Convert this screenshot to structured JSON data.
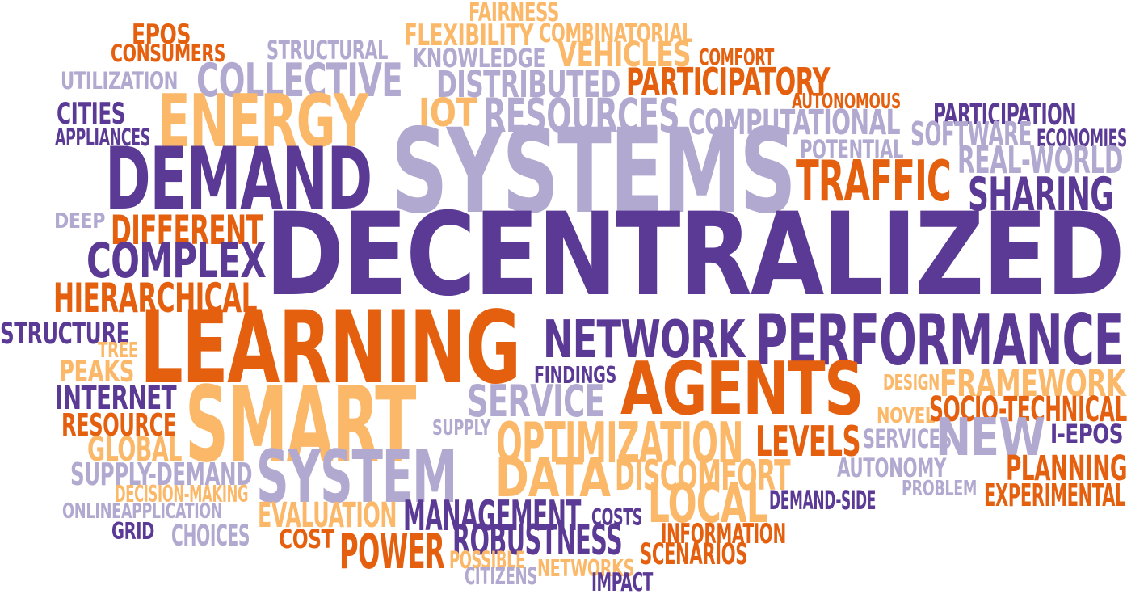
{
  "palette": {
    "dark_purple": "#5b3a96",
    "light_purple": "#b1a9cf",
    "dark_orange": "#e4600f",
    "light_orange": "#fbb868"
  },
  "words": [
    {
      "text": "FAIRNESS",
      "color": "light_orange"
    },
    {
      "text": "EPOS",
      "color": "dark_orange"
    },
    {
      "text": "CONSUMERS",
      "color": "dark_orange"
    },
    {
      "text": "STRUCTURAL",
      "color": "light_purple"
    },
    {
      "text": "FLEXIBILITY",
      "color": "light_orange"
    },
    {
      "text": "COMBINATORIAL",
      "color": "light_orange"
    },
    {
      "text": "KNOWLEDGE",
      "color": "light_purple"
    },
    {
      "text": "VEHICLES",
      "color": "light_orange"
    },
    {
      "text": "COMFORT",
      "color": "dark_orange"
    },
    {
      "text": "UTILIZATION",
      "color": "light_purple"
    },
    {
      "text": "COLLECTIVE",
      "color": "light_purple"
    },
    {
      "text": "DISTRIBUTED",
      "color": "light_purple"
    },
    {
      "text": "PARTICIPATORY",
      "color": "dark_orange"
    },
    {
      "text": "AUTONOMOUS",
      "color": "dark_orange"
    },
    {
      "text": "CITIES",
      "color": "dark_purple"
    },
    {
      "text": "ENERGY",
      "color": "light_orange"
    },
    {
      "text": "IOT",
      "color": "light_orange"
    },
    {
      "text": "RESOURCES",
      "color": "light_purple"
    },
    {
      "text": "COMPUTATIONAL",
      "color": "light_purple"
    },
    {
      "text": "PARTICIPATION",
      "color": "dark_purple"
    },
    {
      "text": "APPLIANCES",
      "color": "dark_purple"
    },
    {
      "text": "SOFTWARE",
      "color": "light_purple"
    },
    {
      "text": "ECONOMIES",
      "color": "dark_purple"
    },
    {
      "text": "POTENTIAL",
      "color": "light_purple"
    },
    {
      "text": "DEMAND",
      "color": "dark_purple"
    },
    {
      "text": "SYSTEMS",
      "color": "light_purple"
    },
    {
      "text": "REAL-WORLD",
      "color": "light_purple"
    },
    {
      "text": "TRAFFIC",
      "color": "dark_orange"
    },
    {
      "text": "SHARING",
      "color": "dark_purple"
    },
    {
      "text": "DEEP",
      "color": "light_purple"
    },
    {
      "text": "DIFFERENT",
      "color": "dark_orange"
    },
    {
      "text": "COMPLEX",
      "color": "dark_purple"
    },
    {
      "text": "DECENTRALIZED",
      "color": "dark_purple"
    },
    {
      "text": "HIERARCHICAL",
      "color": "dark_orange"
    },
    {
      "text": "STRUCTURE",
      "color": "dark_purple"
    },
    {
      "text": "LEARNING",
      "color": "dark_orange"
    },
    {
      "text": "NETWORK",
      "color": "dark_purple"
    },
    {
      "text": "PERFORMANCE",
      "color": "dark_purple"
    },
    {
      "text": "TREE",
      "color": "light_orange"
    },
    {
      "text": "PEAKS",
      "color": "light_orange"
    },
    {
      "text": "FINDINGS",
      "color": "dark_purple"
    },
    {
      "text": "AGENTS",
      "color": "dark_orange"
    },
    {
      "text": "DESIGN",
      "color": "light_orange"
    },
    {
      "text": "FRAMEWORK",
      "color": "light_orange"
    },
    {
      "text": "INTERNET",
      "color": "dark_purple"
    },
    {
      "text": "SMART",
      "color": "light_orange"
    },
    {
      "text": "SERVICE",
      "color": "light_purple"
    },
    {
      "text": "NOVEL",
      "color": "light_orange"
    },
    {
      "text": "SOCIO-TECHNICAL",
      "color": "dark_orange"
    },
    {
      "text": "RESOURCE",
      "color": "dark_orange"
    },
    {
      "text": "SUPPLY",
      "color": "light_purple"
    },
    {
      "text": "NEW",
      "color": "light_purple"
    },
    {
      "text": "I-EPOS",
      "color": "dark_purple"
    },
    {
      "text": "GLOBAL",
      "color": "light_orange"
    },
    {
      "text": "OPTIMIZATION",
      "color": "light_orange"
    },
    {
      "text": "LEVELS",
      "color": "dark_orange"
    },
    {
      "text": "SERVICES",
      "color": "light_purple"
    },
    {
      "text": "SUPPLY-DEMAND",
      "color": "light_purple"
    },
    {
      "text": "SYSTEM",
      "color": "light_purple"
    },
    {
      "text": "DATA",
      "color": "light_orange"
    },
    {
      "text": "DISCOMFORT",
      "color": "light_orange"
    },
    {
      "text": "AUTONOMY",
      "color": "light_purple"
    },
    {
      "text": "PLANNING",
      "color": "dark_orange"
    },
    {
      "text": "DECISION-MAKING",
      "color": "light_orange"
    },
    {
      "text": "PROBLEM",
      "color": "light_purple"
    },
    {
      "text": "EXPERIMENTAL",
      "color": "dark_orange"
    },
    {
      "text": "ONLINE",
      "color": "light_purple"
    },
    {
      "text": "APPLICATION",
      "color": "light_purple"
    },
    {
      "text": "LOCAL",
      "color": "light_orange"
    },
    {
      "text": "DEMAND-SIDE",
      "color": "dark_purple"
    },
    {
      "text": "EVALUATION",
      "color": "light_orange"
    },
    {
      "text": "MANAGEMENT",
      "color": "dark_purple"
    },
    {
      "text": "COSTS",
      "color": "dark_purple"
    },
    {
      "text": "GRID",
      "color": "dark_purple"
    },
    {
      "text": "CHOICES",
      "color": "light_purple"
    },
    {
      "text": "COST",
      "color": "dark_orange"
    },
    {
      "text": "ROBUSTNESS",
      "color": "dark_purple"
    },
    {
      "text": "INFORMATION",
      "color": "dark_orange"
    },
    {
      "text": "POWER",
      "color": "dark_orange"
    },
    {
      "text": "POSSIBLE",
      "color": "light_orange"
    },
    {
      "text": "SCENARIOS",
      "color": "dark_orange"
    },
    {
      "text": "CITIZENS",
      "color": "light_purple"
    },
    {
      "text": "NETWORKS",
      "color": "light_orange"
    },
    {
      "text": "IMPACT",
      "color": "dark_purple"
    }
  ]
}
